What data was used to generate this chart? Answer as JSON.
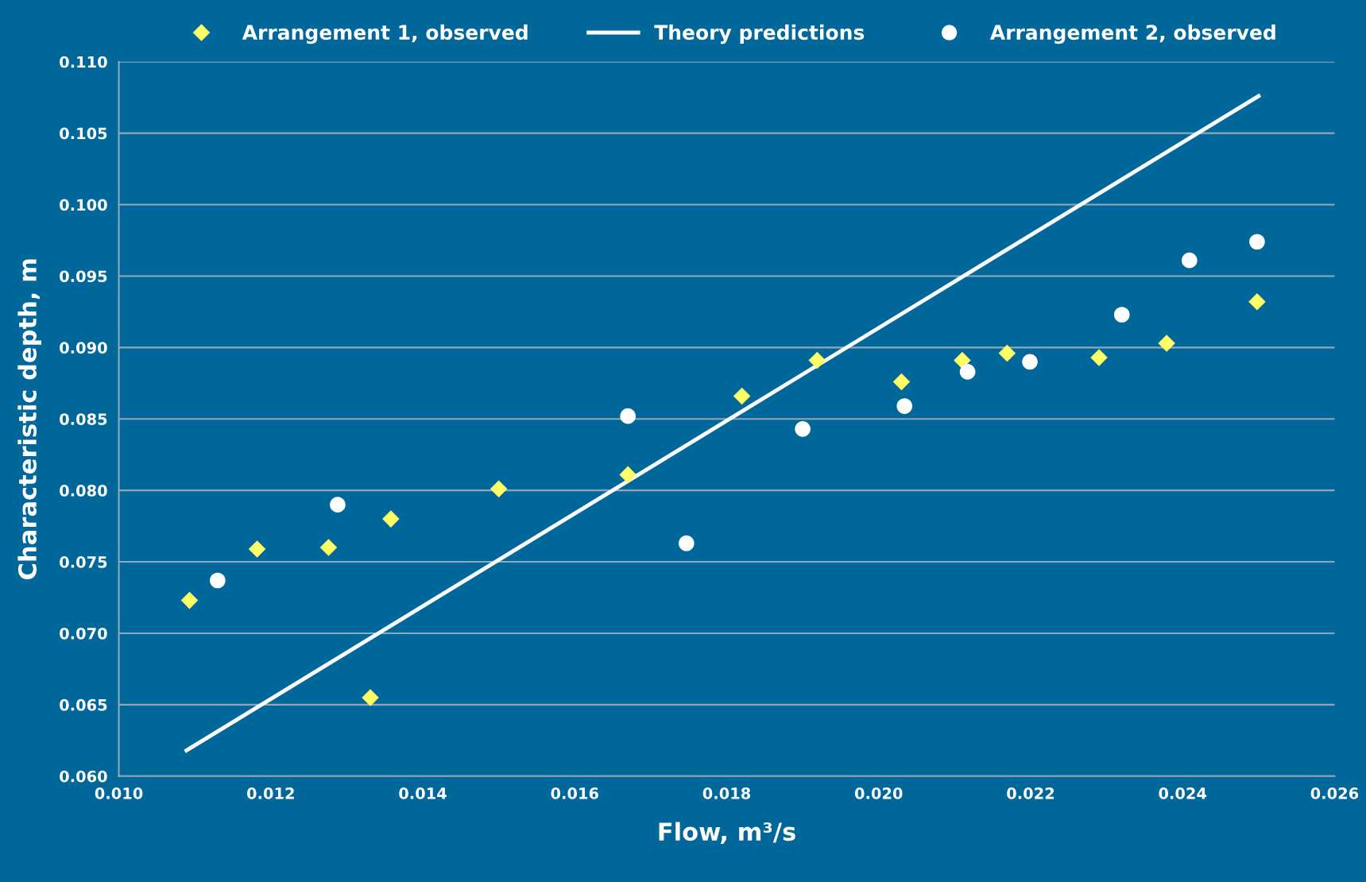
{
  "chart_data": {
    "type": "scatter",
    "xlabel": "Flow, m³/s",
    "ylabel": "Characteristic depth, m",
    "xlim": [
      0.01,
      0.026
    ],
    "xticks": [
      {
        "value": 0.01,
        "label": "0.010"
      },
      {
        "value": 0.012,
        "label": "0.012"
      },
      {
        "value": 0.014,
        "label": "0.014"
      },
      {
        "value": 0.016,
        "label": "0.016"
      },
      {
        "value": 0.018,
        "label": "0.018"
      },
      {
        "value": 0.02,
        "label": "0.020"
      },
      {
        "value": 0.022,
        "label": "0.022"
      },
      {
        "value": 0.024,
        "label": "0.024"
      },
      {
        "value": 0.026,
        "label": "0.026"
      }
    ],
    "ylim": [
      0.06,
      0.11
    ],
    "yticks": [
      {
        "value": 0.06,
        "label": "0.060"
      },
      {
        "value": 0.065,
        "label": "0.065"
      },
      {
        "value": 0.07,
        "label": "0.070"
      },
      {
        "value": 0.075,
        "label": "0.075"
      },
      {
        "value": 0.08,
        "label": "0.080"
      },
      {
        "value": 0.085,
        "label": "0.085"
      },
      {
        "value": 0.09,
        "label": "0.090"
      },
      {
        "value": 0.095,
        "label": "0.095"
      },
      {
        "value": 0.1,
        "label": "0.100"
      },
      {
        "value": 0.105,
        "label": "0.105"
      },
      {
        "value": 0.11,
        "label": "0.110"
      }
    ],
    "grid": "y",
    "legend": "top",
    "series": [
      {
        "name": "Arrangement 1, observed",
        "marker": "diamond",
        "color": "#ffff66",
        "x": [
          0.01093,
          0.01182,
          0.01276,
          0.01331,
          0.01358,
          0.015,
          0.0167,
          0.0182,
          0.01919,
          0.0203,
          0.0211,
          0.02169,
          0.0229,
          0.02379,
          0.02498
        ],
        "values": [
          0.0723,
          0.0759,
          0.076,
          0.0655,
          0.078,
          0.0801,
          0.0811,
          0.0866,
          0.0891,
          0.0876,
          0.0891,
          0.0896,
          0.0893,
          0.0903,
          0.0932
        ]
      },
      {
        "name": "Theory predictions",
        "type": "line",
        "marker": "none",
        "color": "#ffffff",
        "x": [
          0.01089,
          0.025
        ],
        "values": [
          0.0618,
          0.1076
        ]
      },
      {
        "name": "Arrangement 2, observed",
        "marker": "circle",
        "color": "#ffffff",
        "x": [
          0.0113,
          0.01288,
          0.0167,
          0.01747,
          0.019,
          0.02034,
          0.02117,
          0.02199,
          0.0232,
          0.02409,
          0.02498
        ],
        "values": [
          0.0737,
          0.079,
          0.0852,
          0.0763,
          0.0843,
          0.0859,
          0.0883,
          0.089,
          0.0923,
          0.0961,
          0.0974
        ]
      }
    ]
  }
}
